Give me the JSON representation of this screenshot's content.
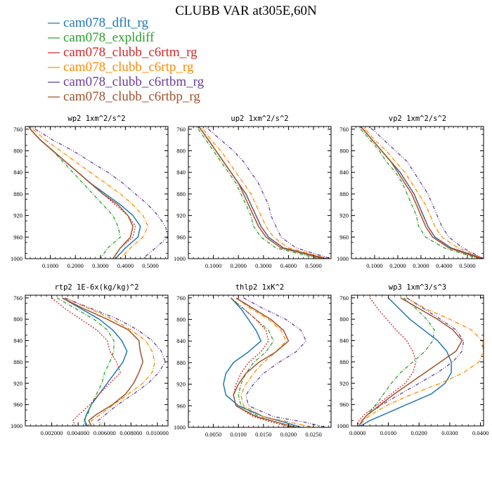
{
  "title": "CLUBB VAR at305E,60N",
  "colors": {
    "cam078_dflt_rg": "#1f77b4",
    "cam078_expldiff": "#2ca02c",
    "cam078_clubb_c6rtm_rg": "#d62728",
    "cam078_clubb_c6rtp_rg": "#ff8c00",
    "cam078_clubb_c6rtbm_rg": "#6a3d9a",
    "cam078_clubb_c6rtbp_rg": "#a0522d"
  },
  "legend": [
    "cam078_dflt_rg",
    "cam078_expldiff",
    "cam078_clubb_c6rtm_rg",
    "cam078_clubb_c6rtp_rg",
    "cam078_clubb_c6rtbm_rg",
    "cam078_clubb_c6rtbp_rg"
  ],
  "chart_data": [
    {
      "type": "line",
      "title": "wp2  1xm^2/s^2",
      "y": [
        750,
        760,
        780,
        800,
        820,
        840,
        860,
        880,
        900,
        920,
        940,
        960,
        980,
        1000
      ],
      "ylim": [
        1000,
        755
      ],
      "yticks": [
        760,
        800,
        840,
        880,
        920,
        960,
        1000
      ],
      "xlim": [
        0.0,
        0.57
      ],
      "xticks": [
        "0.1000",
        "0.2000",
        "0.3000",
        "0.4000",
        "0.5000"
      ],
      "xtick_values": [
        0.1,
        0.2,
        0.3,
        0.4,
        0.5
      ],
      "series": [
        {
          "name": "cam078_dflt_rg",
          "values": [
            0.01,
            0.02,
            0.06,
            0.11,
            0.16,
            0.21,
            0.26,
            0.32,
            0.38,
            0.43,
            0.46,
            0.45,
            0.4,
            0.36
          ]
        },
        {
          "name": "cam078_expldiff",
          "values": [
            0.01,
            0.02,
            0.06,
            0.11,
            0.15,
            0.19,
            0.23,
            0.27,
            0.31,
            0.35,
            0.37,
            0.38,
            0.33,
            0.3
          ]
        },
        {
          "name": "cam078_clubb_c6rtm_rg",
          "values": [
            0.01,
            0.02,
            0.06,
            0.11,
            0.16,
            0.21,
            0.26,
            0.31,
            0.36,
            0.41,
            0.44,
            0.43,
            0.38,
            0.35
          ]
        },
        {
          "name": "cam078_clubb_c6rtp_rg",
          "values": [
            0.01,
            0.03,
            0.08,
            0.14,
            0.2,
            0.26,
            0.32,
            0.38,
            0.43,
            0.47,
            0.49,
            0.47,
            0.42,
            0.38
          ]
        },
        {
          "name": "cam078_clubb_c6rtbm_rg",
          "values": [
            0.01,
            0.04,
            0.11,
            0.19,
            0.26,
            0.33,
            0.39,
            0.44,
            0.49,
            0.53,
            0.56,
            0.57,
            0.52,
            0.47
          ]
        },
        {
          "name": "cam078_clubb_c6rtbp_rg",
          "values": [
            0.01,
            0.02,
            0.06,
            0.11,
            0.16,
            0.21,
            0.26,
            0.31,
            0.37,
            0.41,
            0.43,
            0.42,
            0.38,
            0.35
          ]
        }
      ]
    },
    {
      "type": "line",
      "title": "up2  1xm^2/s^2",
      "y": [
        750,
        760,
        780,
        800,
        820,
        840,
        860,
        880,
        900,
        920,
        940,
        960,
        980,
        1000
      ],
      "ylim": [
        1000,
        755
      ],
      "yticks": [
        760,
        800,
        840,
        880,
        920,
        960,
        1000
      ],
      "xlim": [
        0.0,
        0.57
      ],
      "xticks": [
        "0.1000",
        "0.2000",
        "0.3000",
        "0.4000",
        "0.5000"
      ],
      "xtick_values": [
        0.1,
        0.2,
        0.3,
        0.4,
        0.5
      ],
      "series": [
        {
          "name": "cam078_dflt_rg",
          "values": [
            0.03,
            0.05,
            0.08,
            0.11,
            0.14,
            0.17,
            0.2,
            0.23,
            0.25,
            0.27,
            0.29,
            0.32,
            0.38,
            0.55
          ]
        },
        {
          "name": "cam078_expldiff",
          "values": [
            0.02,
            0.04,
            0.07,
            0.1,
            0.13,
            0.16,
            0.19,
            0.21,
            0.23,
            0.25,
            0.26,
            0.29,
            0.35,
            0.52
          ]
        },
        {
          "name": "cam078_clubb_c6rtm_rg",
          "values": [
            0.03,
            0.05,
            0.08,
            0.11,
            0.14,
            0.17,
            0.2,
            0.23,
            0.25,
            0.27,
            0.29,
            0.32,
            0.38,
            0.55
          ]
        },
        {
          "name": "cam078_clubb_c6rtp_rg",
          "values": [
            0.04,
            0.06,
            0.09,
            0.13,
            0.16,
            0.19,
            0.22,
            0.25,
            0.27,
            0.29,
            0.31,
            0.34,
            0.4,
            0.56
          ]
        },
        {
          "name": "cam078_clubb_c6rtbm_rg",
          "values": [
            0.05,
            0.08,
            0.13,
            0.18,
            0.22,
            0.25,
            0.28,
            0.3,
            0.32,
            0.33,
            0.35,
            0.37,
            0.43,
            0.57
          ]
        },
        {
          "name": "cam078_clubb_c6rtbp_rg",
          "values": [
            0.03,
            0.05,
            0.08,
            0.11,
            0.14,
            0.17,
            0.2,
            0.22,
            0.24,
            0.26,
            0.28,
            0.31,
            0.37,
            0.54
          ]
        }
      ]
    },
    {
      "type": "line",
      "title": "vp2  1xm^2/s^2",
      "y": [
        750,
        760,
        780,
        800,
        820,
        840,
        860,
        880,
        900,
        920,
        940,
        960,
        980,
        1000
      ],
      "ylim": [
        1000,
        755
      ],
      "yticks": [
        760,
        800,
        840,
        880,
        920,
        960,
        1000
      ],
      "xlim": [
        0.0,
        0.57
      ],
      "xticks": [
        "0.1000",
        "0.2000",
        "0.3000",
        "0.4000",
        "0.5000"
      ],
      "xtick_values": [
        0.1,
        0.2,
        0.3,
        0.4,
        0.5
      ],
      "series": [
        {
          "name": "cam078_dflt_rg",
          "values": [
            0.03,
            0.05,
            0.09,
            0.13,
            0.17,
            0.21,
            0.24,
            0.27,
            0.29,
            0.31,
            0.33,
            0.36,
            0.43,
            0.57
          ]
        },
        {
          "name": "cam078_expldiff",
          "values": [
            0.02,
            0.04,
            0.08,
            0.12,
            0.15,
            0.19,
            0.22,
            0.24,
            0.26,
            0.28,
            0.29,
            0.32,
            0.4,
            0.55
          ]
        },
        {
          "name": "cam078_clubb_c6rtm_rg",
          "values": [
            0.03,
            0.05,
            0.09,
            0.13,
            0.17,
            0.21,
            0.24,
            0.27,
            0.29,
            0.31,
            0.33,
            0.36,
            0.43,
            0.57
          ]
        },
        {
          "name": "cam078_clubb_c6rtp_rg",
          "values": [
            0.04,
            0.06,
            0.1,
            0.15,
            0.19,
            0.23,
            0.26,
            0.29,
            0.32,
            0.34,
            0.36,
            0.39,
            0.46,
            0.57
          ]
        },
        {
          "name": "cam078_clubb_c6rtbm_rg",
          "values": [
            0.05,
            0.09,
            0.14,
            0.19,
            0.24,
            0.27,
            0.3,
            0.33,
            0.35,
            0.37,
            0.39,
            0.42,
            0.48,
            0.57
          ]
        },
        {
          "name": "cam078_clubb_c6rtbp_rg",
          "values": [
            0.03,
            0.05,
            0.09,
            0.13,
            0.17,
            0.2,
            0.23,
            0.26,
            0.28,
            0.3,
            0.32,
            0.35,
            0.42,
            0.56
          ]
        }
      ]
    },
    {
      "type": "line",
      "title": "rtp2  1E-6x(kg/kg)^2",
      "y": [
        760,
        780,
        800,
        820,
        840,
        860,
        880,
        900,
        920,
        940,
        960,
        980,
        990,
        1000
      ],
      "ylim": [
        1000,
        755
      ],
      "yticks": [
        760,
        800,
        840,
        880,
        920,
        960,
        1000
      ],
      "xlim": [
        0.0,
        0.0108
      ],
      "xticks": [
        "0.002000",
        "0.004000",
        "0.006000",
        "0.008000",
        "0.010000"
      ],
      "xtick_values": [
        0.002,
        0.004,
        0.006,
        0.008,
        0.01
      ],
      "series": [
        {
          "name": "cam078_dflt_rg",
          "values": [
            0.0028,
            0.0042,
            0.0056,
            0.0066,
            0.0073,
            0.0077,
            0.0074,
            0.0068,
            0.0062,
            0.0056,
            0.005,
            0.0046,
            0.0045,
            0.0047
          ]
        },
        {
          "name": "cam078_expldiff",
          "values": [
            0.0024,
            0.0038,
            0.0052,
            0.0062,
            0.0067,
            0.0067,
            0.0064,
            0.006,
            0.0058,
            0.0054,
            0.005,
            0.0047,
            0.0044,
            0.0046
          ]
        },
        {
          "name": "cam078_clubb_c6rtm_rg",
          "values": [
            0.002,
            0.003,
            0.0042,
            0.0054,
            0.0062,
            0.0064,
            0.0069,
            0.0072,
            0.0064,
            0.0056,
            0.0049,
            0.004,
            0.0036,
            0.0038
          ]
        },
        {
          "name": "cam078_clubb_c6rtp_rg",
          "values": [
            0.003,
            0.0048,
            0.0066,
            0.008,
            0.0091,
            0.0096,
            0.0098,
            0.0096,
            0.0089,
            0.0078,
            0.0067,
            0.0056,
            0.005,
            0.0052
          ]
        },
        {
          "name": "cam078_clubb_c6rtbm_rg",
          "values": [
            0.003,
            0.005,
            0.007,
            0.0085,
            0.0096,
            0.0103,
            0.0106,
            0.0101,
            0.0093,
            0.0082,
            0.007,
            0.006,
            0.0055,
            0.0058
          ]
        },
        {
          "name": "cam078_clubb_c6rtbp_rg",
          "values": [
            0.0028,
            0.0044,
            0.0062,
            0.0078,
            0.0086,
            0.0087,
            0.0089,
            0.0086,
            0.0082,
            0.0076,
            0.0066,
            0.0053,
            0.0048,
            0.005
          ]
        }
      ]
    },
    {
      "type": "line",
      "title": "thlp2  1xK^2",
      "y": [
        760,
        780,
        800,
        820,
        840,
        860,
        880,
        900,
        920,
        940,
        960,
        980,
        990,
        1000
      ],
      "ylim": [
        1000,
        755
      ],
      "yticks": [
        760,
        800,
        840,
        880,
        920,
        960,
        1000
      ],
      "xlim": [
        0.0,
        0.0285
      ],
      "xticks": [
        "0.0050",
        "0.0100",
        "0.0150",
        "0.0200",
        "0.0250"
      ],
      "xtick_values": [
        0.005,
        0.01,
        0.015,
        0.02,
        0.025
      ],
      "series": [
        {
          "name": "cam078_dflt_rg",
          "values": [
            0.0085,
            0.0105,
            0.012,
            0.0135,
            0.0145,
            0.012,
            0.009,
            0.0075,
            0.007,
            0.0075,
            0.01,
            0.015,
            0.019,
            0.0225
          ]
        },
        {
          "name": "cam078_expldiff",
          "values": [
            0.0085,
            0.011,
            0.0135,
            0.016,
            0.017,
            0.0155,
            0.013,
            0.0115,
            0.0105,
            0.01,
            0.0105,
            0.014,
            0.0175,
            0.021
          ]
        },
        {
          "name": "cam078_clubb_c6rtm_rg",
          "values": [
            0.0085,
            0.011,
            0.0135,
            0.0155,
            0.016,
            0.0145,
            0.012,
            0.0105,
            0.0095,
            0.009,
            0.0095,
            0.013,
            0.0165,
            0.0205
          ]
        },
        {
          "name": "cam078_clubb_c6rtp_rg",
          "values": [
            0.0095,
            0.0125,
            0.016,
            0.0185,
            0.0195,
            0.0175,
            0.015,
            0.013,
            0.0115,
            0.0105,
            0.011,
            0.015,
            0.02,
            0.025
          ]
        },
        {
          "name": "cam078_clubb_c6rtbm_rg",
          "values": [
            0.011,
            0.015,
            0.0195,
            0.0225,
            0.0235,
            0.0215,
            0.018,
            0.015,
            0.013,
            0.0115,
            0.012,
            0.017,
            0.023,
            0.0275
          ]
        },
        {
          "name": "cam078_clubb_c6rtbp_rg",
          "values": [
            0.0095,
            0.013,
            0.0165,
            0.019,
            0.02,
            0.0175,
            0.014,
            0.0115,
            0.01,
            0.009,
            0.0095,
            0.0135,
            0.0175,
            0.0215
          ]
        }
      ]
    },
    {
      "type": "line",
      "title": "wp3  1xm^3/s^3",
      "y": [
        760,
        780,
        800,
        820,
        840,
        860,
        880,
        900,
        920,
        940,
        960,
        980,
        990,
        1000
      ],
      "ylim": [
        1000,
        755
      ],
      "yticks": [
        760,
        800,
        840,
        880,
        920,
        960,
        1000
      ],
      "xlim": [
        -0.002,
        0.041
      ],
      "xticks": [
        "0.0000",
        "0.0100",
        "0.0200",
        "0.0300",
        "0.0400"
      ],
      "xtick_values": [
        0.0,
        0.01,
        0.02,
        0.03,
        0.04
      ],
      "series": [
        {
          "name": "cam078_dflt_rg",
          "values": [
            0.01,
            0.0135,
            0.017,
            0.0215,
            0.026,
            0.029,
            0.0305,
            0.0305,
            0.0285,
            0.024,
            0.016,
            0.008,
            0.004,
            0.001
          ]
        },
        {
          "name": "cam078_expldiff",
          "values": [
            0.015,
            0.019,
            0.0225,
            0.025,
            0.0245,
            0.022,
            0.018,
            0.014,
            0.011,
            0.0085,
            0.006,
            0.003,
            0.0015,
            0.0005
          ]
        },
        {
          "name": "cam078_clubb_c6rtm_rg",
          "values": [
            0.004,
            0.0065,
            0.0095,
            0.0125,
            0.016,
            0.018,
            0.019,
            0.018,
            0.0155,
            0.011,
            0.0065,
            0.002,
            0.0005,
            0.0
          ]
        },
        {
          "name": "cam078_clubb_c6rtp_rg",
          "values": [
            0.016,
            0.022,
            0.03,
            0.037,
            0.0405,
            0.041,
            0.0395,
            0.0345,
            0.027,
            0.018,
            0.01,
            0.004,
            0.002,
            0.0005
          ]
        },
        {
          "name": "cam078_clubb_c6rtbm_rg",
          "values": [
            0.016,
            0.0215,
            0.027,
            0.032,
            0.0345,
            0.034,
            0.031,
            0.026,
            0.02,
            0.014,
            0.008,
            0.003,
            0.0015,
            0.0005
          ]
        },
        {
          "name": "cam078_clubb_c6rtbp_rg",
          "values": [
            0.014,
            0.02,
            0.026,
            0.031,
            0.034,
            0.032,
            0.027,
            0.022,
            0.017,
            0.012,
            0.0075,
            0.003,
            0.0015,
            0.0005
          ]
        }
      ]
    }
  ]
}
